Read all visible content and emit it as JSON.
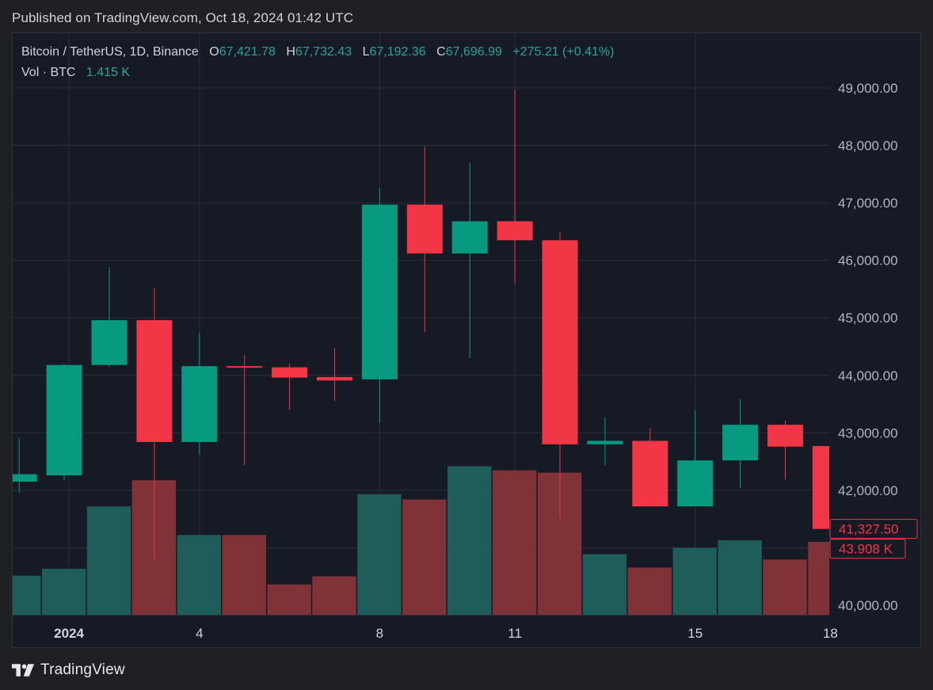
{
  "header": {
    "published": "Published on TradingView.com, Oct 18, 2024 01:42 UTC"
  },
  "legend": {
    "symbol": "Bitcoin / TetherUS, 1D, Binance",
    "open_label": "O",
    "open": "67,421.78",
    "high_label": "H",
    "high": "67,732.43",
    "low_label": "L",
    "low": "67,192.36",
    "close_label": "C",
    "close": "67,696.99",
    "change": "+275.21 (+0.41%)",
    "vol_label": "Vol · BTC",
    "vol": "1.415 K"
  },
  "colors": {
    "up": "#089981",
    "down": "#f23645",
    "vol_up": "#1f5d5b",
    "vol_down": "#7f3337",
    "grid": "#2a2e39",
    "text": "#b2b5be",
    "legend_value": "#26a69a"
  },
  "chart_data": {
    "type": "candlestick",
    "ylim": [
      39800,
      49600
    ],
    "y_ticks": [
      "49,000.00",
      "48,000.00",
      "47,000.00",
      "46,000.00",
      "45,000.00",
      "44,000.00",
      "43,000.00",
      "42,000.00",
      "40,000.00"
    ],
    "y_tick_values": [
      49000,
      48000,
      47000,
      46000,
      45000,
      44000,
      43000,
      42000,
      40000
    ],
    "x_tick_labels": [
      {
        "label": "2024",
        "index": 1,
        "bold": true
      },
      {
        "label": "4",
        "index": 4
      },
      {
        "label": "8",
        "index": 8
      },
      {
        "label": "11",
        "index": 11
      },
      {
        "label": "15",
        "index": 15
      },
      {
        "label": "18",
        "index": 18
      }
    ],
    "candles": [
      {
        "open": 42150,
        "high": 42900,
        "low": 41950,
        "close": 42280
      },
      {
        "open": 42260,
        "high": 44200,
        "low": 42180,
        "close": 44180
      },
      {
        "open": 44180,
        "high": 45880,
        "low": 44150,
        "close": 44960
      },
      {
        "open": 44960,
        "high": 45520,
        "low": 40780,
        "close": 42840
      },
      {
        "open": 42840,
        "high": 44740,
        "low": 42620,
        "close": 44160
      },
      {
        "open": 44160,
        "high": 44350,
        "low": 42440,
        "close": 44140
      },
      {
        "open": 44140,
        "high": 44210,
        "low": 43400,
        "close": 43960
      },
      {
        "open": 43970,
        "high": 44470,
        "low": 43560,
        "close": 43910
      },
      {
        "open": 43930,
        "high": 47250,
        "low": 43170,
        "close": 46970
      },
      {
        "open": 46970,
        "high": 47980,
        "low": 44750,
        "close": 46120
      },
      {
        "open": 46120,
        "high": 47700,
        "low": 44300,
        "close": 46680
      },
      {
        "open": 46680,
        "high": 48970,
        "low": 45600,
        "close": 46350
      },
      {
        "open": 46350,
        "high": 46500,
        "low": 41520,
        "close": 42800
      },
      {
        "open": 42800,
        "high": 43270,
        "low": 42440,
        "close": 42860
      },
      {
        "open": 42860,
        "high": 43080,
        "low": 41720,
        "close": 41720
      },
      {
        "open": 41720,
        "high": 43400,
        "low": 41720,
        "close": 42520
      },
      {
        "open": 42520,
        "high": 43580,
        "low": 42040,
        "close": 43140
      },
      {
        "open": 43140,
        "high": 43210,
        "low": 42190,
        "close": 42760
      },
      {
        "open": 42770,
        "high": 42920,
        "low": 40680,
        "close": 41327.5
      }
    ],
    "volume_scale_max": 2500,
    "volumes": [
      {
        "value": 670,
        "dir": "up"
      },
      {
        "value": 790,
        "dir": "up"
      },
      {
        "value": 1860,
        "dir": "up"
      },
      {
        "value": 2310,
        "dir": "down"
      },
      {
        "value": 1370,
        "dir": "up"
      },
      {
        "value": 1370,
        "dir": "down"
      },
      {
        "value": 520,
        "dir": "down"
      },
      {
        "value": 660,
        "dir": "down"
      },
      {
        "value": 2070,
        "dir": "up"
      },
      {
        "value": 1980,
        "dir": "down"
      },
      {
        "value": 2550,
        "dir": "up"
      },
      {
        "value": 2480,
        "dir": "down"
      },
      {
        "value": 2440,
        "dir": "down"
      },
      {
        "value": 1040,
        "dir": "up"
      },
      {
        "value": 810,
        "dir": "down"
      },
      {
        "value": 1150,
        "dir": "up"
      },
      {
        "value": 1280,
        "dir": "up"
      },
      {
        "value": 950,
        "dir": "down"
      },
      {
        "value": 1250,
        "dir": "down"
      }
    ],
    "last_price_label": "41,327.50",
    "last_price_value": 41327.5,
    "last_volume_label": "43.908 K"
  },
  "footer": {
    "brand": "TradingView"
  }
}
